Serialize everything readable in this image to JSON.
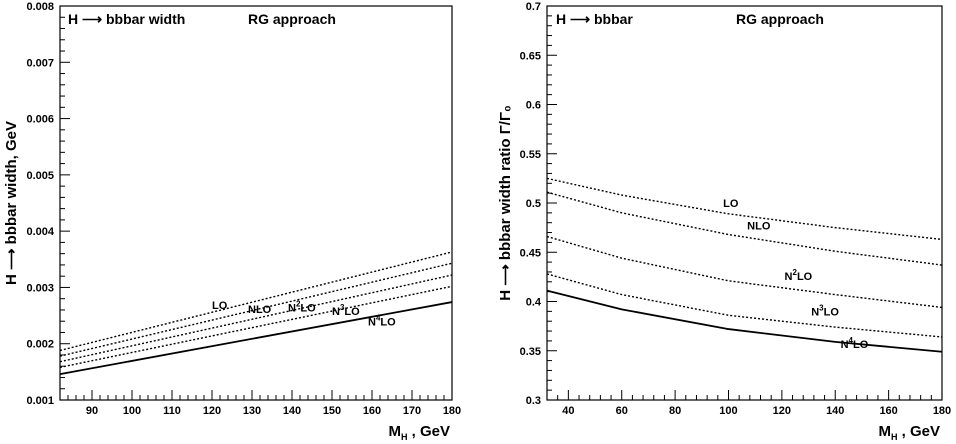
{
  "chart_data": [
    {
      "type": "line",
      "annotations": [
        "H ⟶ bbbar width",
        "RG approach"
      ],
      "xlabel": "M_H , GeV",
      "ylabel": "H ⟶ bbbar width, GeV",
      "xlim": [
        82,
        180
      ],
      "ylim": [
        0.001,
        0.008
      ],
      "xticks": [
        90,
        100,
        110,
        120,
        130,
        140,
        150,
        160,
        170,
        180
      ],
      "yticks": [
        0.001,
        0.002,
        0.003,
        0.004,
        0.005,
        0.006,
        0.007,
        0.008
      ],
      "ytick_labels": [
        "0.001",
        "0.002",
        "0.003",
        "0.004",
        "0.005",
        "0.006",
        "0.007",
        "0.008"
      ],
      "series": [
        {
          "name": "LO",
          "label_parts": [
            "LO"
          ],
          "label_at": [
            120,
            0.00262
          ],
          "style": "dotted",
          "x": [
            82,
            180
          ],
          "y": [
            0.00188,
            0.00363
          ]
        },
        {
          "name": "NLO",
          "label_parts": [
            "NLO"
          ],
          "label_at": [
            129,
            0.00255
          ],
          "style": "dotted",
          "x": [
            82,
            180
          ],
          "y": [
            0.00178,
            0.00343
          ]
        },
        {
          "name": "N2LO",
          "label_parts": [
            "N",
            "2",
            "LO"
          ],
          "label_at": [
            139,
            0.00257
          ],
          "style": "dotted",
          "x": [
            82,
            180
          ],
          "y": [
            0.00168,
            0.00322
          ]
        },
        {
          "name": "N3LO",
          "label_parts": [
            "N",
            "3",
            "LO"
          ],
          "label_at": [
            150,
            0.00251
          ],
          "style": "dotted",
          "x": [
            82,
            180
          ],
          "y": [
            0.00158,
            0.00302
          ]
        },
        {
          "name": "N4LO",
          "label_parts": [
            "N",
            "4",
            "LO"
          ],
          "label_at": [
            159,
            0.00232
          ],
          "style": "solid",
          "x": [
            82,
            180
          ],
          "y": [
            0.00146,
            0.00274
          ]
        }
      ]
    },
    {
      "type": "line",
      "annotations": [
        "H ⟶ bbbar",
        "RG  approach"
      ],
      "xlabel": "M_H , GeV",
      "ylabel": "H ⟶ bbbar width ratio Γ/Γ₀",
      "xlim": [
        32,
        180
      ],
      "ylim": [
        0.3,
        0.7
      ],
      "xticks": [
        40,
        60,
        80,
        100,
        120,
        140,
        160,
        180
      ],
      "yticks": [
        0.3,
        0.35,
        0.4,
        0.45,
        0.5,
        0.55,
        0.6,
        0.65,
        0.7
      ],
      "ytick_labels": [
        "0.3",
        "0.35",
        "0.4",
        "0.45",
        "0.5",
        "0.55",
        "0.6",
        "0.65",
        "0.7"
      ],
      "series": [
        {
          "name": "LO",
          "label_parts": [
            "LO"
          ],
          "label_at": [
            98,
            0.496
          ],
          "style": "dotted",
          "x": [
            32,
            60,
            100,
            140,
            180
          ],
          "y": [
            0.525,
            0.508,
            0.489,
            0.475,
            0.463
          ]
        },
        {
          "name": "NLO",
          "label_parts": [
            "NLO"
          ],
          "label_at": [
            107,
            0.473
          ],
          "style": "dotted",
          "x": [
            32,
            60,
            100,
            140,
            180
          ],
          "y": [
            0.511,
            0.49,
            0.468,
            0.451,
            0.437
          ]
        },
        {
          "name": "N2LO",
          "label_parts": [
            "N",
            "2",
            "LO"
          ],
          "label_at": [
            121,
            0.422
          ],
          "style": "dotted",
          "x": [
            32,
            60,
            100,
            140,
            180
          ],
          "y": [
            0.466,
            0.444,
            0.421,
            0.407,
            0.394
          ]
        },
        {
          "name": "N3LO",
          "label_parts": [
            "N",
            "3",
            "LO"
          ],
          "label_at": [
            131,
            0.386
          ],
          "style": "dotted",
          "x": [
            32,
            60,
            100,
            140,
            180
          ],
          "y": [
            0.428,
            0.407,
            0.386,
            0.374,
            0.364
          ]
        },
        {
          "name": "N4LO",
          "label_parts": [
            "N",
            "4",
            "LO"
          ],
          "label_at": [
            142,
            0.353
          ],
          "style": "solid",
          "x": [
            32,
            60,
            100,
            140,
            180
          ],
          "y": [
            0.411,
            0.392,
            0.372,
            0.359,
            0.349
          ]
        }
      ]
    }
  ]
}
